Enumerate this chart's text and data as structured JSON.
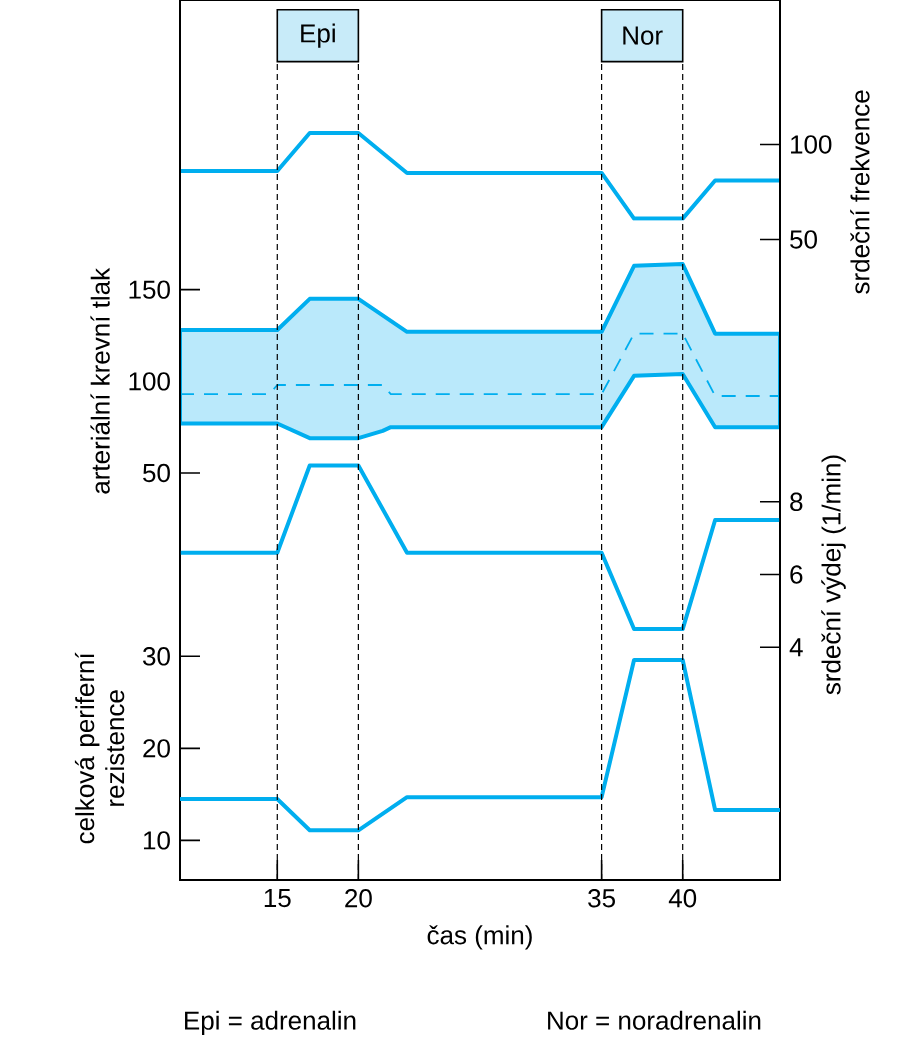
{
  "chart_data": [
    {
      "type": "line",
      "y2label": "srdeční frekvence",
      "xlim": [
        9,
        46
      ],
      "y2lim": [
        -287,
        176
      ],
      "y2ticks": [
        50,
        100
      ],
      "tick_labels": "y",
      "series": [
        {
          "color": "#00aeef",
          "axis": "y2",
          "x": [
            9,
            15,
            17,
            20,
            23,
            35,
            37,
            40,
            42,
            46
          ],
          "values": [
            86,
            86,
            106,
            106,
            85,
            85,
            61,
            61,
            81,
            81
          ]
        }
      ]
    },
    {
      "type": "line",
      "ylabel": "arteriální krevní tlak",
      "xlim": [
        9,
        46
      ],
      "ylim": [
        -172,
        308
      ],
      "yticks": [
        50,
        100,
        150
      ],
      "tick_labels": "y",
      "series": [
        {
          "color": "#00aeef",
          "line_style": "dashed",
          "x": [
            9,
            14.5,
            15,
            17,
            20,
            21.5,
            22,
            23,
            35,
            37,
            40,
            42,
            46
          ],
          "values": [
            93,
            93,
            98,
            98,
            98,
            98,
            93,
            93,
            93,
            126,
            126,
            92,
            92
          ],
          "lower": [
            77,
            77,
            77,
            69,
            69,
            73,
            75,
            75,
            75,
            103,
            104,
            75,
            75
          ],
          "upper": [
            128,
            128,
            128,
            145,
            145,
            136,
            133,
            127,
            127,
            163,
            164,
            126,
            126
          ]
        }
      ]
    },
    {
      "type": "line",
      "y2label": "srdeční výdej (1/min)",
      "xlim": [
        9,
        46
      ],
      "y2lim": [
        -2.4,
        21.8
      ],
      "y2ticks": [
        4,
        6,
        8
      ],
      "tick_labels": "y",
      "series": [
        {
          "color": "#00aeef",
          "axis": "y2",
          "x": [
            9,
            15,
            17,
            20,
            23,
            35,
            37,
            40,
            42,
            46
          ],
          "values": [
            6.6,
            6.6,
            9.0,
            9.0,
            6.6,
            6.6,
            4.5,
            4.5,
            7.5,
            7.5
          ]
        }
      ]
    },
    {
      "type": "line",
      "ylabel": "celková periferní rezistence",
      "xlabel": "čas (min)",
      "xlim": [
        9,
        46
      ],
      "xticks": [
        15,
        20,
        35,
        40
      ],
      "ylim": [
        5.7,
        101.3
      ],
      "yticks": [
        10,
        20,
        30
      ],
      "bands": [
        {
          "axis": "x",
          "from": 15,
          "to": 20,
          "label": "Epi",
          "color": "#c8ebf9"
        },
        {
          "axis": "x",
          "from": 35,
          "to": 40,
          "label": "Nor",
          "color": "#c8ebf9"
        }
      ],
      "ref_lines": [
        {
          "axis": "x",
          "value": 15,
          "line_style": "dashed"
        },
        {
          "axis": "x",
          "value": 20,
          "line_style": "dashed"
        },
        {
          "axis": "x",
          "value": 35,
          "line_style": "dashed"
        },
        {
          "axis": "x",
          "value": 40,
          "line_style": "dashed"
        }
      ],
      "annotations": [
        "Epi = adrenalin",
        "Nor = noradrenalin"
      ],
      "series": [
        {
          "color": "#00aeef",
          "x": [
            9,
            15,
            17,
            20,
            23,
            35,
            37,
            40,
            42,
            46
          ],
          "values": [
            14.5,
            14.5,
            11.1,
            11.1,
            14.7,
            14.7,
            29.6,
            29.6,
            13.3,
            13.3
          ]
        }
      ]
    }
  ]
}
